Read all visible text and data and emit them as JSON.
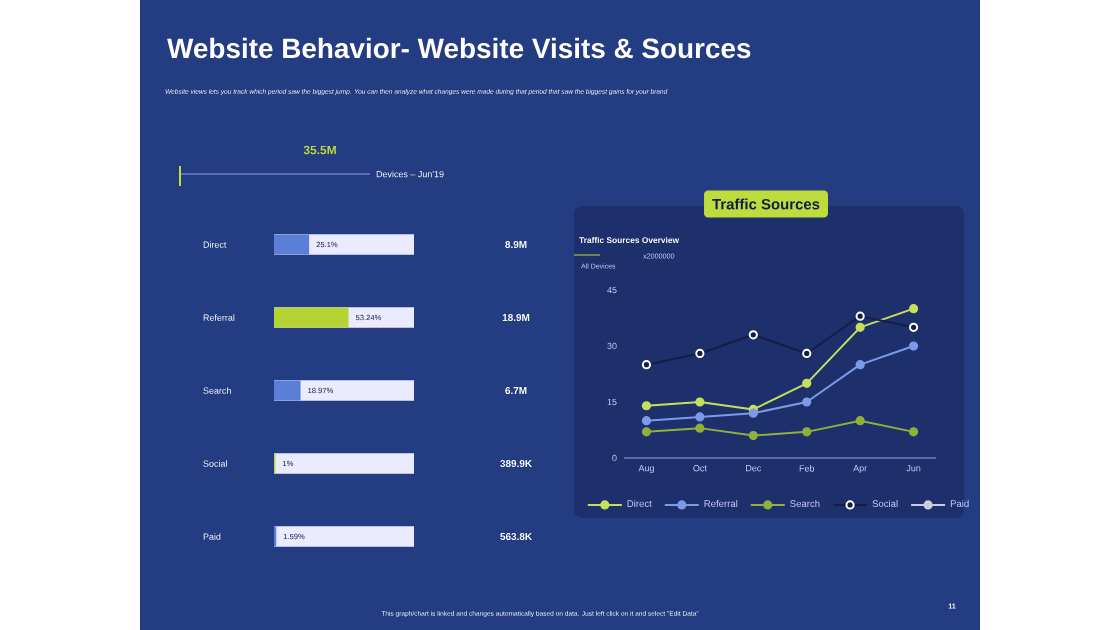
{
  "chart_data": [
    {
      "type": "bar",
      "orientation": "horizontal",
      "title": "Website Behavior- Website Visits & Sources",
      "subtitle": "Website views lets you track which period saw the biggest jump.  You can then analyze what changes were made during that period that saw the biggest gains for your brand",
      "categories": [
        "Direct",
        "Referral",
        "Search",
        "Social",
        "Paid"
      ],
      "values": [
        25.1,
        53.24,
        18.97,
        1,
        1.59
      ],
      "value_labels": [
        "25.1%",
        "53.24%",
        "18.97%",
        "1%",
        "1.59%"
      ],
      "colors": [
        "#5b7fd6",
        "#b5d334",
        "#5b7fd6",
        "#b5d334",
        "#5b7fd6"
      ],
      "xlim": [
        0,
        100
      ],
      "annotations": [
        "35.5M",
        "Devices – Jun'19",
        "8.9M",
        "18.9M",
        "6.7M",
        "389.9K",
        "563.8K"
      ]
    },
    {
      "type": "line",
      "title": "Traffic Sources",
      "subtitle": "Traffic Sources Overview",
      "categories": [
        "Aug",
        "Oct",
        "Dec",
        "Feb",
        "Apr",
        "Jun"
      ],
      "ylim": [
        0,
        45
      ],
      "yticks": [
        0,
        15,
        30,
        45
      ],
      "marker": "circle",
      "legend": "bottom",
      "series": [
        {
          "name": "Direct",
          "color": "#c5e05a",
          "values": [
            14,
            15,
            13,
            20,
            35,
            40
          ]
        },
        {
          "name": "Referral",
          "color": "#7b9be8",
          "values": [
            10,
            11,
            12,
            15,
            25,
            30
          ]
        },
        {
          "name": "Search",
          "color": "#8fb03a",
          "values": [
            7,
            8,
            6,
            7,
            10,
            7
          ]
        },
        {
          "name": "Social",
          "color": "#141d45",
          "values": [
            25,
            28,
            33,
            28,
            38,
            35
          ]
        },
        {
          "name": "Paid",
          "color": "#c8cde0",
          "values": [
            null,
            null,
            null,
            null,
            null,
            null
          ]
        }
      ],
      "annotations": [
        "All Devices",
        "x2000000",
        "This graph/chart is linked and changes automatically based on data. Just left click on it and select \"Edit Data\"",
        "11"
      ]
    }
  ]
}
